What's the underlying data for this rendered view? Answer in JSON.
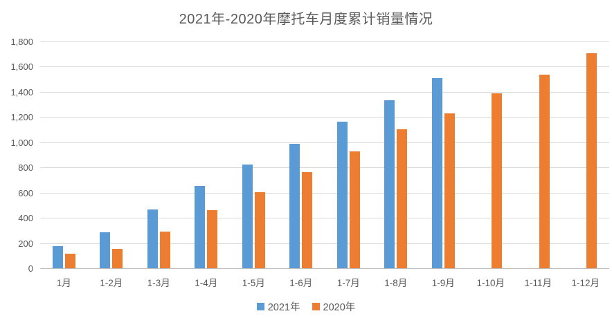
{
  "chart_data": {
    "type": "bar",
    "title": "2021年-2020年摩托车月度累计销量情况",
    "categories": [
      "1月",
      "1-2月",
      "1-3月",
      "1-4月",
      "1-5月",
      "1-6月",
      "1-7月",
      "1-8月",
      "1-9月",
      "1-10月",
      "1-11月",
      "1-12月"
    ],
    "series": [
      {
        "name": "2021年",
        "color": "#5B9BD5",
        "values": [
          175,
          283,
          469,
          656,
          826,
          990,
          1166,
          1335,
          1511,
          null,
          null,
          null
        ]
      },
      {
        "name": "2020年",
        "color": "#ED7D31",
        "values": [
          114,
          154,
          291,
          459,
          604,
          763,
          930,
          1102,
          1228,
          1387,
          1539,
          1707
        ]
      }
    ],
    "xlabel": "",
    "ylabel": "",
    "ylim": [
      0,
      1800
    ],
    "ytick_step": 200,
    "ytick_labels": [
      "0",
      "200",
      "400",
      "600",
      "800",
      "1,000",
      "1,200",
      "1,400",
      "1,600",
      "1,800"
    ],
    "grid": true,
    "legend_position": "bottom"
  },
  "colors": {
    "text": "#595959",
    "gridline": "#D9D9D9",
    "axis_line": "#BFBFBF",
    "background": "#FFFFFF"
  }
}
